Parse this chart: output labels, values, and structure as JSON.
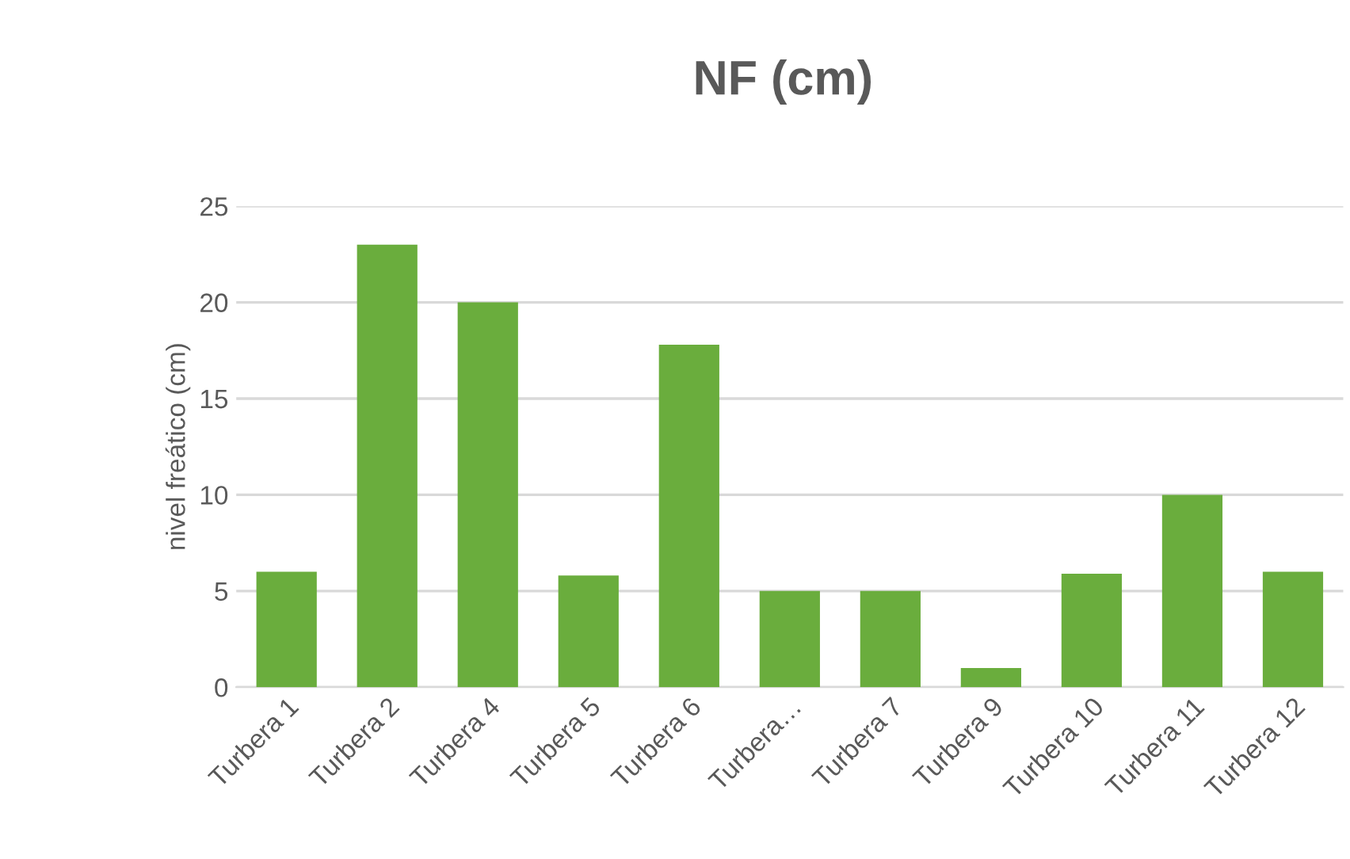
{
  "chart_data": {
    "type": "bar",
    "title": "NF (cm)",
    "ylabel": "nivel freático (cm)",
    "categories": [
      "Turbera 1",
      "Turbera 2",
      "Turbera 4",
      "Turbera 5",
      "Turbera 6",
      "Turbera…",
      "Turbera 7",
      "Turbera 9",
      "Turbera 10",
      "Turbera 11",
      "Turbera 12"
    ],
    "values": [
      6,
      23,
      20,
      5.8,
      17.8,
      5,
      5,
      1,
      5.9,
      10,
      6
    ],
    "color": "#6aad3d",
    "ylim": [
      0,
      25
    ],
    "yticks": [
      0,
      5,
      10,
      15,
      20,
      25
    ],
    "grid": "y"
  }
}
